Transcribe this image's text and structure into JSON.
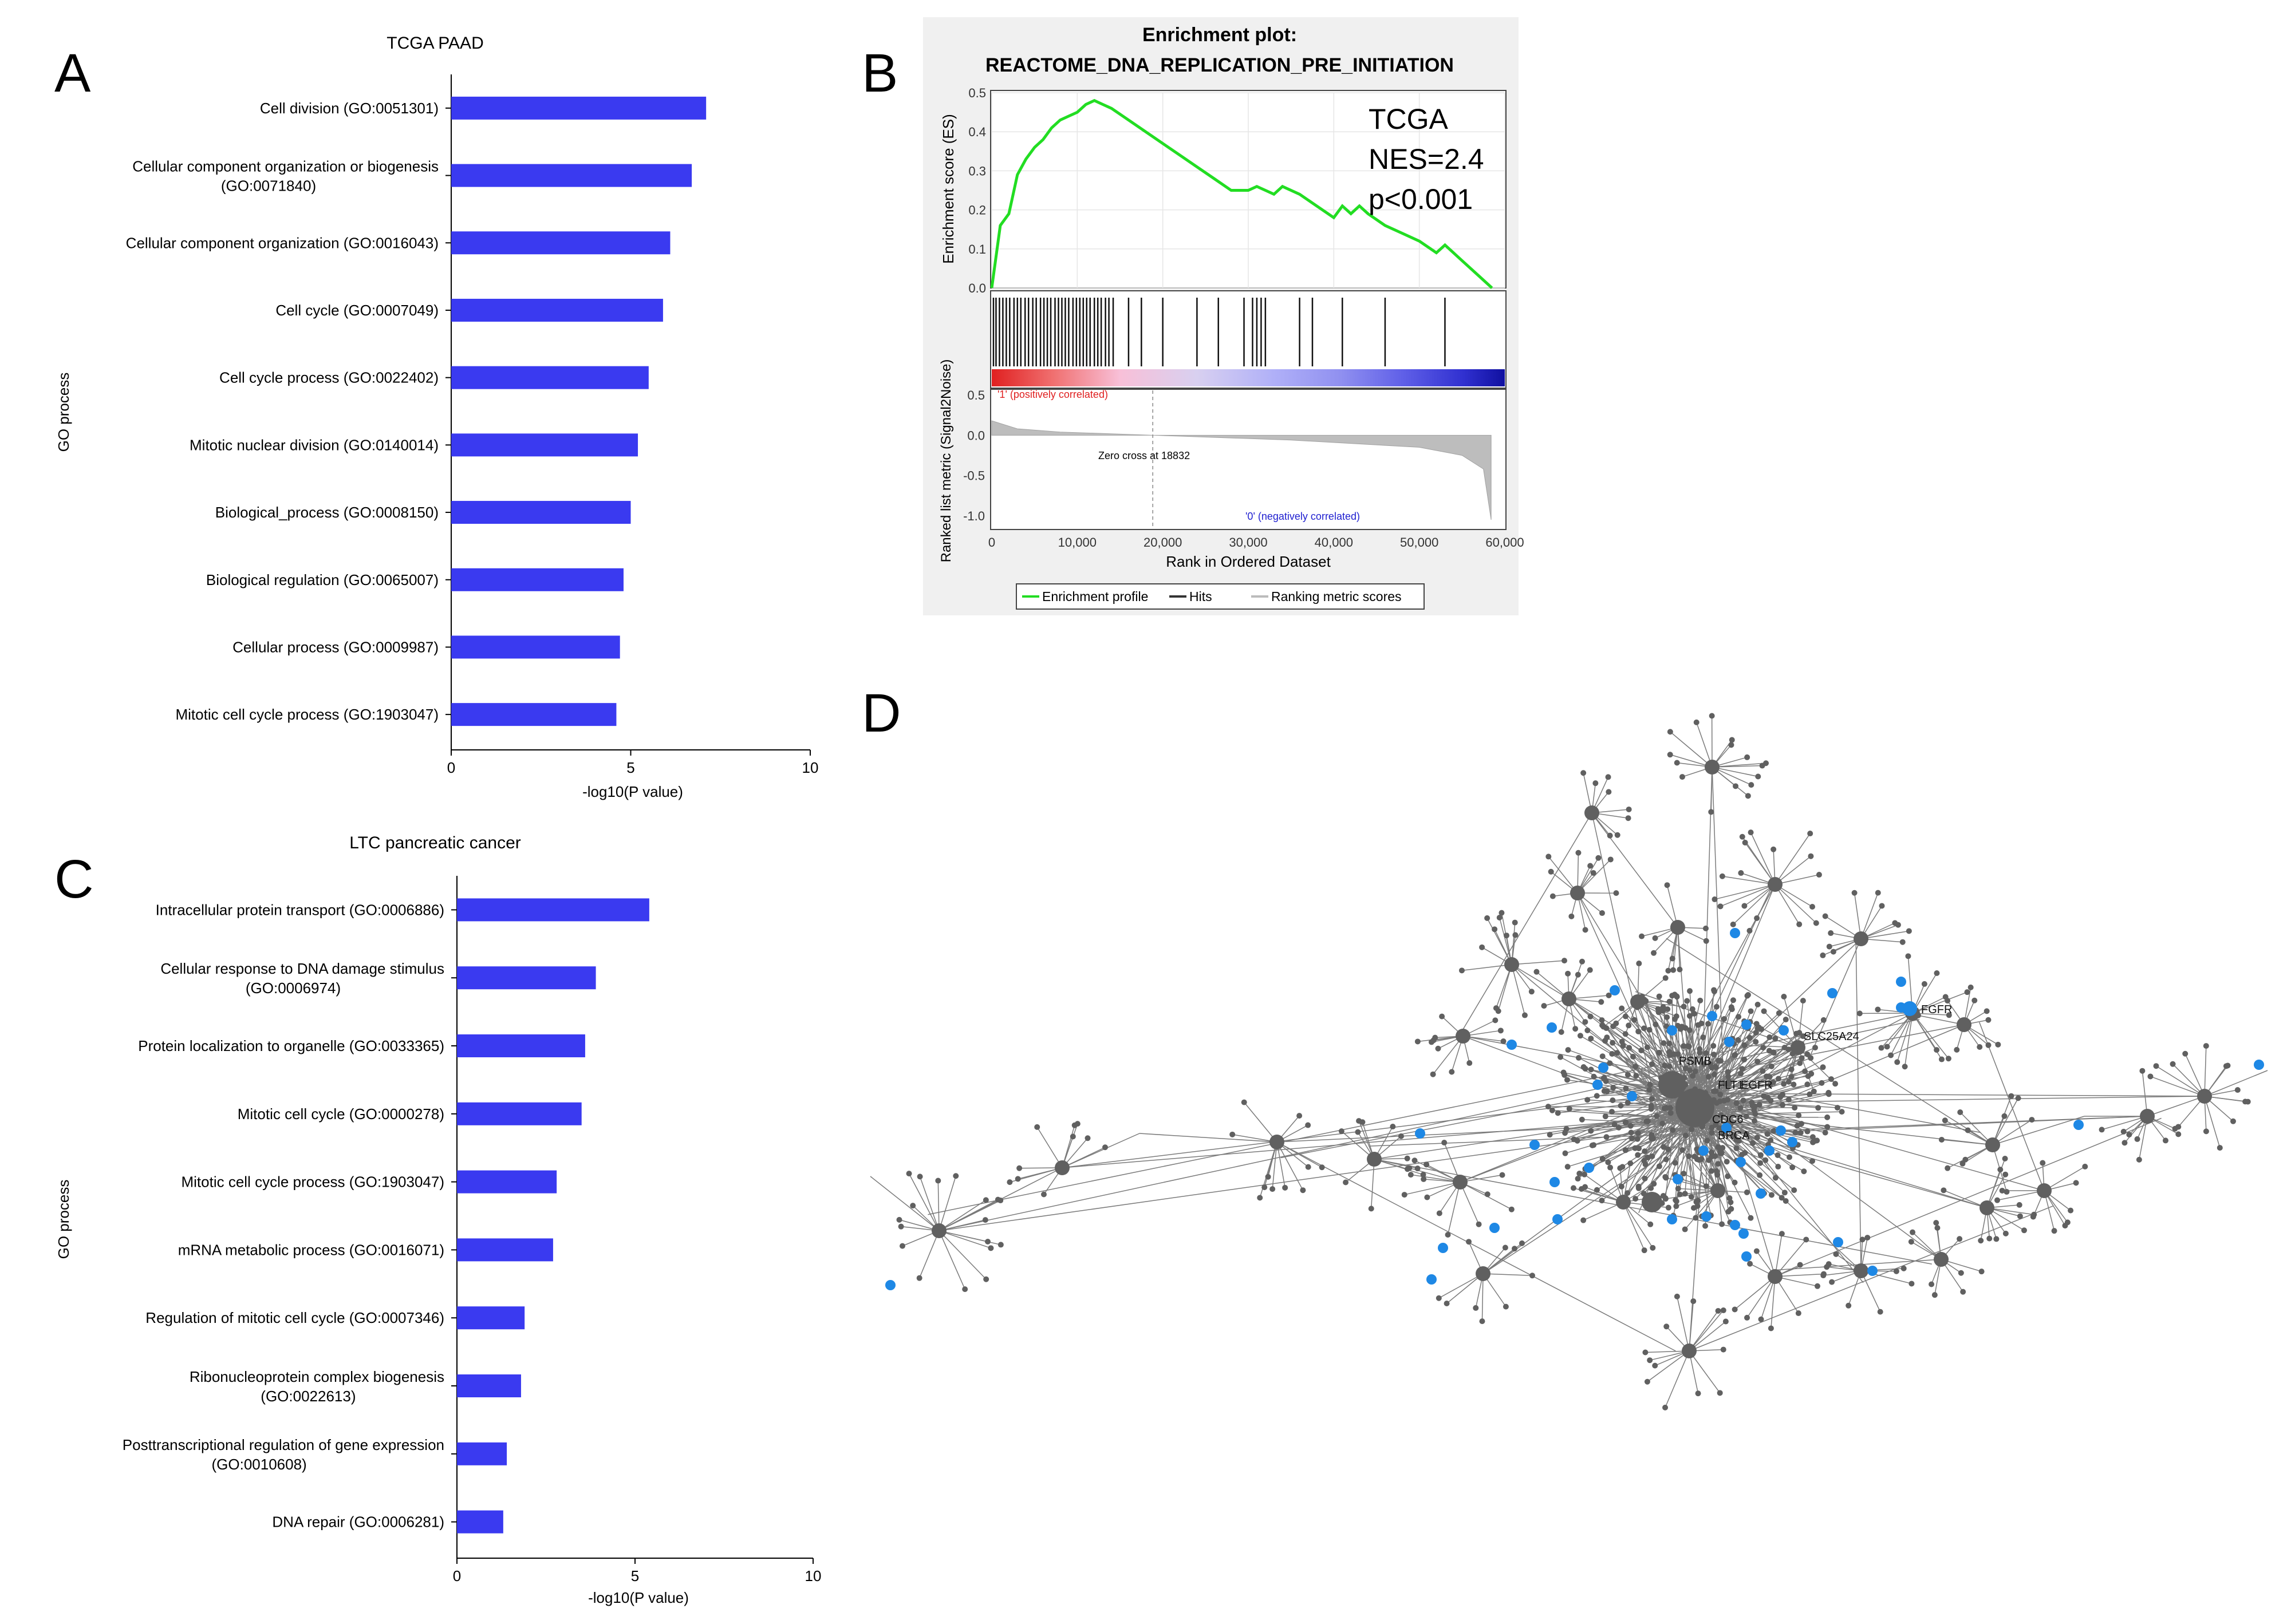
{
  "panel_labels": [
    "A",
    "B",
    "C",
    "D"
  ],
  "colors": {
    "bar": "#3a3af0",
    "es_line": "#22dd22",
    "node": "#606060",
    "highlight_node": "#1e88e5",
    "gsea_bg": "#f0f0f0"
  },
  "chart_data": [
    {
      "panel": "A",
      "type": "bar",
      "orientation": "horizontal",
      "title": "TCGA PAAD",
      "xlabel": "-log10(P value)",
      "ylabel": "GO process",
      "xlim": [
        0,
        10
      ],
      "xticks": [
        "0",
        "5",
        "10"
      ],
      "categories": [
        "Cell division (GO:0051301)",
        "Cellular component organization or biogenesis (GO:0071840)",
        "Cellular component organization (GO:0016043)",
        "Cell cycle (GO:0007049)",
        "Cell cycle process (GO:0022402)",
        "Mitotic nuclear division (GO:0140014)",
        "Biological_process (GO:0008150)",
        "Biological regulation (GO:0065007)",
        "Cellular process (GO:0009987)",
        "Mitotic cell cycle process (GO:1903047)"
      ],
      "values": [
        7.1,
        6.7,
        6.1,
        5.9,
        5.5,
        5.2,
        5.0,
        4.8,
        4.7,
        4.6
      ]
    },
    {
      "panel": "C",
      "type": "bar",
      "orientation": "horizontal",
      "title": "LTC pancreatic cancer",
      "xlabel": "-log10(P value)",
      "ylabel": "GO process",
      "xlim": [
        0,
        10
      ],
      "xticks": [
        "0",
        "5",
        "10"
      ],
      "categories": [
        "Intracellular protein transport (GO:0006886)",
        "Cellular response to DNA damage stimulus (GO:0006974)",
        "Protein localization to organelle (GO:0033365)",
        "Mitotic cell cycle (GO:0000278)",
        "Mitotic cell cycle process (GO:1903047)",
        "mRNA metabolic process (GO:0016071)",
        "Regulation of mitotic cell cycle (GO:0007346)",
        "Ribonucleoprotein complex biogenesis (GO:0022613)",
        "Posttranscriptional regulation of gene expression (GO:0010608)",
        "DNA repair (GO:0006281)"
      ],
      "values": [
        5.4,
        3.9,
        3.6,
        3.5,
        2.8,
        2.7,
        1.9,
        1.8,
        1.4,
        1.3
      ]
    },
    {
      "panel": "B",
      "type": "line",
      "title": "Enrichment plot:",
      "subtitle": "REACTOME_DNA_REPLICATION_PRE_INITIATION",
      "annotation": [
        "TCGA",
        "NES=2.4",
        "p<0.001"
      ],
      "ylabel": "Enrichment score (ES)",
      "xlabel": "Rank in Ordered Dataset",
      "xlim": [
        0,
        60000
      ],
      "ylim": [
        0,
        0.5
      ],
      "es_yticks": [
        "0.0",
        "0.1",
        "0.2",
        "0.3",
        "0.4",
        "0.5"
      ],
      "x": [
        0,
        1000,
        2000,
        3000,
        4000,
        5000,
        6000,
        7000,
        8000,
        9000,
        10000,
        11000,
        12000,
        13000,
        14000,
        16000,
        18000,
        20000,
        22000,
        24000,
        26000,
        28000,
        30000,
        31000,
        32000,
        33000,
        34000,
        36000,
        38000,
        40000,
        41000,
        42000,
        43000,
        44000,
        46000,
        48000,
        50000,
        52000,
        53000,
        55000,
        57000,
        58500
      ],
      "y": [
        0.0,
        0.16,
        0.19,
        0.29,
        0.33,
        0.36,
        0.38,
        0.41,
        0.43,
        0.44,
        0.45,
        0.47,
        0.48,
        0.47,
        0.46,
        0.43,
        0.4,
        0.37,
        0.34,
        0.31,
        0.28,
        0.25,
        0.25,
        0.26,
        0.25,
        0.24,
        0.26,
        0.24,
        0.21,
        0.18,
        0.21,
        0.19,
        0.21,
        0.19,
        0.16,
        0.14,
        0.12,
        0.09,
        0.11,
        0.07,
        0.03,
        0.0
      ],
      "hits": [
        200,
        500,
        900,
        1300,
        1700,
        2100,
        2600,
        3000,
        3400,
        3900,
        4300,
        4800,
        5200,
        5700,
        6100,
        6500,
        6900,
        7400,
        7800,
        8200,
        8600,
        9000,
        9500,
        9900,
        10300,
        10700,
        11100,
        11500,
        12000,
        12400,
        12800,
        13300,
        13700,
        14200,
        16000,
        17500,
        20000,
        24000,
        26500,
        29500,
        30500,
        31000,
        31500,
        32000,
        36000,
        37500,
        41000,
        46000,
        53000
      ],
      "metric_ylabel": "Ranked list metric (Signal2Noise)",
      "metric_yticks": [
        "0.5",
        "0.0",
        "-0.5",
        "-1.0"
      ],
      "metric_ylim": [
        -1.1,
        0.5
      ],
      "xticks": [
        "0",
        "10,000",
        "20,000",
        "30,000",
        "40,000",
        "50,000",
        "60,000"
      ],
      "positive_label": "'1' (positively correlated)",
      "negative_label": "'0' (negatively correlated)",
      "zero_cross_label": "Zero cross at 18832",
      "zero_cross": 18832,
      "legend": [
        "Enrichment profile",
        "Hits",
        "Ranking metric scores"
      ]
    }
  ],
  "network": {
    "panel": "D",
    "node_labels": [
      "PSMB",
      "SLC25A24",
      "FLT1",
      "CDC6",
      "BRCA",
      "FGFR",
      "EGFR"
    ]
  }
}
